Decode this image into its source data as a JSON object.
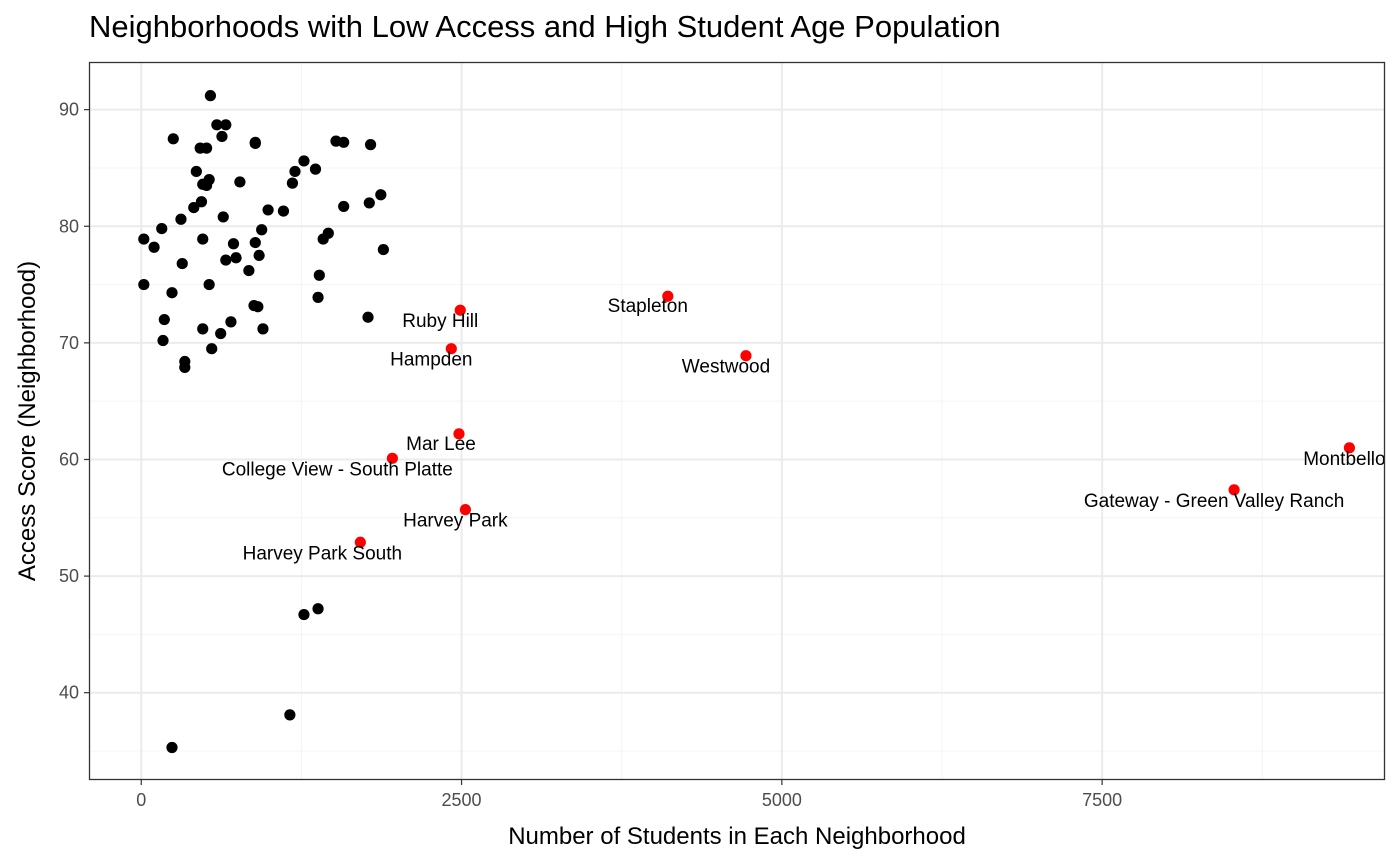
{
  "chart_data": {
    "type": "scatter",
    "title": "Neighborhoods with Low Access and High Student Age Population",
    "xlabel": "Number of Students in Each Neighborhood",
    "ylabel": "Access Score (Neighborhood)",
    "xlim": [
      -400,
      9700
    ],
    "ylim": [
      32.6,
      94
    ],
    "x_ticks": [
      0,
      2500,
      5000,
      7500
    ],
    "x_tick_labels": [
      "0",
      "2500",
      "5000",
      "7500"
    ],
    "y_ticks": [
      40,
      50,
      60,
      70,
      80,
      90
    ],
    "y_tick_labels": [
      "40",
      "50",
      "60",
      "70",
      "80",
      "90"
    ],
    "grid": true,
    "series": [
      {
        "color": "#000000",
        "points": [
          [
            540,
            91.2
          ],
          [
            250,
            87.5
          ],
          [
            590,
            88.7
          ],
          [
            660,
            88.7
          ],
          [
            630,
            87.7
          ],
          [
            890,
            87.2
          ],
          [
            890,
            87.1
          ],
          [
            1520,
            87.3
          ],
          [
            1580,
            87.2
          ],
          [
            1790,
            87.0
          ],
          [
            460,
            86.7
          ],
          [
            510,
            86.7
          ],
          [
            1270,
            85.6
          ],
          [
            1360,
            84.9
          ],
          [
            1200,
            84.7
          ],
          [
            430,
            84.7
          ],
          [
            1180,
            83.7
          ],
          [
            480,
            83.6
          ],
          [
            530,
            84.0
          ],
          [
            510,
            83.5
          ],
          [
            770,
            83.8
          ],
          [
            1870,
            82.7
          ],
          [
            470,
            82.1
          ],
          [
            410,
            81.6
          ],
          [
            1780,
            82.0
          ],
          [
            1580,
            81.7
          ],
          [
            990,
            81.4
          ],
          [
            1110,
            81.3
          ],
          [
            310,
            80.6
          ],
          [
            640,
            80.8
          ],
          [
            160,
            79.8
          ],
          [
            20,
            78.9
          ],
          [
            100,
            78.2
          ],
          [
            480,
            78.9
          ],
          [
            1420,
            78.9
          ],
          [
            1460,
            79.4
          ],
          [
            720,
            78.5
          ],
          [
            890,
            78.6
          ],
          [
            940,
            79.7
          ],
          [
            1890,
            78.0
          ],
          [
            740,
            77.3
          ],
          [
            660,
            77.1
          ],
          [
            920,
            77.5
          ],
          [
            320,
            76.8
          ],
          [
            840,
            76.2
          ],
          [
            1390,
            75.8
          ],
          [
            20,
            75.0
          ],
          [
            530,
            75.0
          ],
          [
            240,
            74.3
          ],
          [
            1380,
            73.9
          ],
          [
            880,
            73.2
          ],
          [
            910,
            73.1
          ],
          [
            180,
            72.0
          ],
          [
            700,
            71.8
          ],
          [
            1770,
            72.2
          ],
          [
            480,
            71.2
          ],
          [
            950,
            71.2
          ],
          [
            620,
            70.8
          ],
          [
            170,
            70.2
          ],
          [
            550,
            69.5
          ],
          [
            340,
            68.4
          ],
          [
            340,
            67.9
          ],
          [
            1270,
            46.7
          ],
          [
            1380,
            47.2
          ],
          [
            1160,
            38.1
          ],
          [
            240,
            35.3
          ]
        ]
      },
      {
        "color": "#ff0000",
        "points": [
          [
            2490,
            72.8
          ],
          [
            4110,
            74.0
          ],
          [
            2420,
            69.5
          ],
          [
            4720,
            68.9
          ],
          [
            2480,
            62.2
          ],
          [
            1960,
            60.1
          ],
          [
            2530,
            55.7
          ],
          [
            1710,
            52.9
          ],
          [
            8530,
            57.4
          ],
          [
            9430,
            61.0
          ]
        ],
        "labels": [
          "Ruby Hill",
          "Stapleton",
          "Hampden",
          "Westwood",
          "Mar Lee",
          "College View - South Platte",
          "Harvey Park",
          "Harvey Park South",
          "Gateway - Green Valley Ranch",
          "Montbello"
        ]
      }
    ],
    "colors": {
      "panel_border": "#333333",
      "major_grid": "#ebebeb",
      "minor_grid": "#f4f4f4",
      "tick_text": "#4d4d4d"
    }
  }
}
